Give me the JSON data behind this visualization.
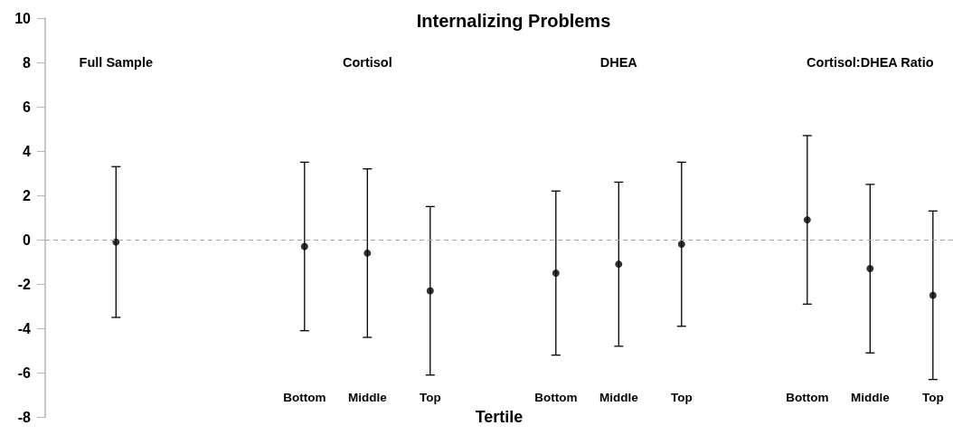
{
  "chart_data": {
    "type": "scatter",
    "title": "Internalizing Problems",
    "xlabel": "Tertile",
    "categories": [
      null,
      null,
      null,
      "Bottom",
      "Middle",
      "Top",
      null,
      "Bottom",
      "Middle",
      "Top",
      null,
      "Bottom",
      "Middle",
      "Top"
    ],
    "values": [
      -0.1,
      null,
      null,
      -0.3,
      -0.6,
      -2.3,
      null,
      -1.5,
      -1.1,
      -0.2,
      null,
      0.9,
      -1.3,
      -2.5
    ],
    "errors": [
      3.4,
      null,
      null,
      3.8,
      3.8,
      3.8,
      null,
      3.7,
      3.7,
      3.7,
      null,
      3.8,
      3.8,
      3.8
    ],
    "color": "#000000",
    "marker": "circle",
    "ylim": [
      -8,
      10
    ],
    "yticks": [
      -8,
      -6,
      -4,
      -2,
      0,
      2,
      4,
      6,
      8,
      10
    ],
    "ref_lines": [
      {
        "axis": "y",
        "value": 0,
        "color": "#a6a6a6",
        "line_style": "dashed"
      }
    ],
    "annotations": [
      "Full Sample",
      "Cortisol",
      "DHEA",
      "Cortisol:DHEA Ratio"
    ]
  }
}
